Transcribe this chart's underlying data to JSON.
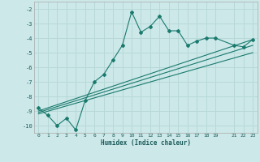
{
  "xlabel": "Humidex (Indice chaleur)",
  "bg_color": "#cce8e8",
  "line_color": "#1a7a6e",
  "grid_color": "#b8d8d8",
  "xlim": [
    -0.5,
    23.5
  ],
  "ylim": [
    -10.5,
    -1.5
  ],
  "xticks": [
    0,
    1,
    2,
    3,
    4,
    5,
    6,
    7,
    8,
    9,
    10,
    11,
    12,
    13,
    14,
    15,
    16,
    17,
    18,
    19,
    21,
    22,
    23
  ],
  "yticks": [
    -10,
    -9,
    -8,
    -7,
    -6,
    -5,
    -4,
    -3,
    -2
  ],
  "main_x": [
    0,
    1,
    2,
    3,
    4,
    5,
    6,
    7,
    8,
    9,
    10,
    11,
    12,
    13,
    14,
    15,
    16,
    17,
    18,
    19,
    21,
    22,
    23
  ],
  "main_y": [
    -8.8,
    -9.3,
    -10.0,
    -9.5,
    -10.3,
    -8.3,
    -7.0,
    -6.5,
    -5.5,
    -4.5,
    -2.2,
    -3.6,
    -3.2,
    -2.5,
    -3.5,
    -3.5,
    -4.5,
    -4.2,
    -4.0,
    -4.0,
    -4.5,
    -4.6,
    -4.1
  ],
  "line1_x": [
    0,
    23
  ],
  "line1_y": [
    -9.0,
    -4.1
  ],
  "line2_x": [
    0,
    23
  ],
  "line2_y": [
    -9.1,
    -4.5
  ],
  "line3_x": [
    0,
    23
  ],
  "line3_y": [
    -9.2,
    -5.0
  ]
}
